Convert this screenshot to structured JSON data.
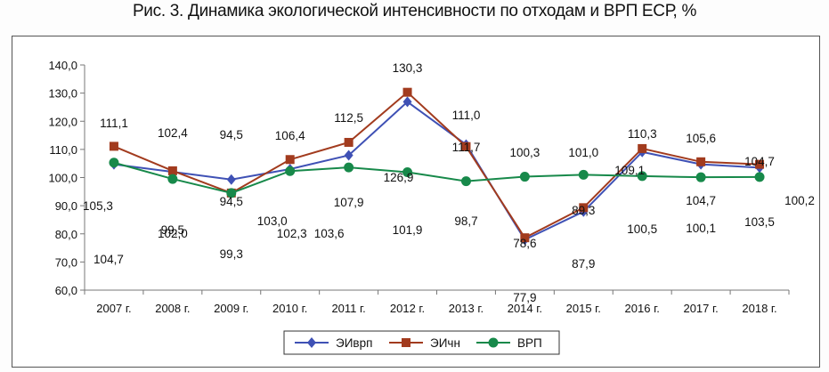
{
  "title": "Рис. 3. Динамика экологической интенсивности по отходам и ВРП ЕСР, %",
  "chart_data": {
    "type": "line",
    "title": "Рис. 3. Динамика экологической интенсивности по отходам и ВРП ЕСР, %",
    "categories": [
      "2007 г.",
      "2008 г.",
      "2009 г.",
      "2010 г.",
      "2011 г.",
      "2012 г.",
      "2013 г.",
      "2014 г.",
      "2015 г.",
      "2016 г.",
      "2017 г.",
      "2018 г."
    ],
    "ylim": [
      60,
      140
    ],
    "yticks": [
      "60,0",
      "70,0",
      "80,0",
      "90,0",
      "100,0",
      "110,0",
      "120,0",
      "130,0",
      "140,0"
    ],
    "grid": false,
    "legend_position": "bottom",
    "series": [
      {
        "name": "ЭИврп",
        "color": "#3f51b5",
        "marker": "diamond",
        "values": [
          104.7,
          102.0,
          99.3,
          103.0,
          107.9,
          126.9,
          111.7,
          77.9,
          87.9,
          109.1,
          104.7,
          103.5
        ],
        "labels": [
          "104,7",
          "102,0",
          "99,3",
          "103,0",
          "107,9",
          "126,9",
          "111,7",
          "77,9",
          "87,9",
          "109,1",
          "104,7",
          "103,5"
        ]
      },
      {
        "name": "ЭИчн",
        "color": "#a23b1e",
        "marker": "square",
        "values": [
          111.1,
          102.4,
          94.5,
          106.4,
          112.5,
          130.3,
          111.0,
          78.6,
          89.3,
          110.3,
          105.6,
          104.7
        ],
        "labels": [
          "111,1",
          "102,4",
          "94,5",
          "106,4",
          "112,5",
          "130,3",
          "111,0",
          "78,6",
          "89,3",
          "110,3",
          "105,6",
          "104,7"
        ]
      },
      {
        "name": "ВРП",
        "color": "#17894a",
        "marker": "circle",
        "values": [
          105.3,
          99.5,
          94.5,
          102.3,
          103.6,
          101.9,
          98.7,
          100.3,
          101.0,
          100.5,
          100.1,
          100.2
        ],
        "labels": [
          "105,3",
          "99,5",
          "94,5",
          "102,3",
          "103,6",
          "101,9",
          "98,7",
          "100,3",
          "101,0",
          "100,5",
          "100,1",
          "100,2"
        ]
      }
    ]
  }
}
